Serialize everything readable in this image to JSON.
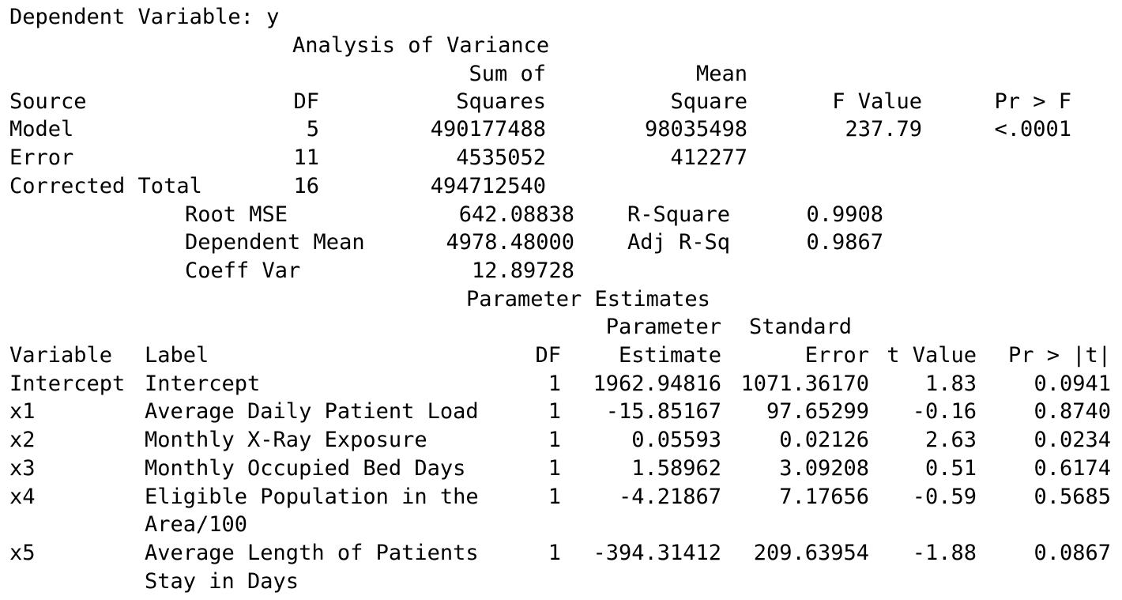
{
  "header": {
    "dependent_variable": "Dependent Variable: y"
  },
  "anova": {
    "title": "Analysis of Variance",
    "headers": {
      "source": "Source",
      "df": "DF",
      "sum_of": "Sum of",
      "squares": "Squares",
      "mean": "Mean",
      "square": "Square",
      "f_value": "F Value",
      "pr_f": "Pr > F"
    },
    "rows": [
      {
        "source": "Model",
        "df": "5",
        "ss": "490177488",
        "ms": "98035498",
        "f": "237.79",
        "p": "<.0001"
      },
      {
        "source": "Error",
        "df": "11",
        "ss": "4535052",
        "ms": "412277",
        "f": "",
        "p": ""
      },
      {
        "source": "Corrected Total",
        "df": "16",
        "ss": "494712540",
        "ms": "",
        "f": "",
        "p": ""
      }
    ]
  },
  "fit": {
    "root_mse_label": "Root MSE",
    "root_mse": "642.08838",
    "rsquare_label": "R-Square",
    "rsquare": "0.9908",
    "dep_mean_label": "Dependent Mean",
    "dep_mean": "4978.48000",
    "adj_rsq_label": "Adj R-Sq",
    "adj_rsq": "0.9867",
    "coeff_var_label": "Coeff Var",
    "coeff_var": "12.89728"
  },
  "params": {
    "title": "Parameter Estimates",
    "headers": {
      "variable": "Variable",
      "label": "Label",
      "df": "DF",
      "parameter": "Parameter",
      "estimate": "Estimate",
      "standard": "Standard",
      "error": "Error",
      "t_value": "t Value",
      "pr_t": "Pr > |t|"
    },
    "rows": [
      {
        "var": "Intercept",
        "label": [
          "Intercept"
        ],
        "df": "1",
        "est": "1962.94816",
        "se": "1071.36170",
        "t": "1.83",
        "p": "0.0941"
      },
      {
        "var": "x1",
        "label": [
          "Average Daily Patient Load"
        ],
        "df": "1",
        "est": "-15.85167",
        "se": "97.65299",
        "t": "-0.16",
        "p": "0.8740"
      },
      {
        "var": "x2",
        "label": [
          "Monthly X-Ray Exposure"
        ],
        "df": "1",
        "est": "0.05593",
        "se": "0.02126",
        "t": "2.63",
        "p": "0.0234"
      },
      {
        "var": "x3",
        "label": [
          "Monthly Occupied Bed Days"
        ],
        "df": "1",
        "est": "1.58962",
        "se": "3.09208",
        "t": "0.51",
        "p": "0.6174"
      },
      {
        "var": "x4",
        "label": [
          "Eligible Population in the",
          "Area/100"
        ],
        "df": "1",
        "est": "-4.21867",
        "se": "7.17656",
        "t": "-0.59",
        "p": "0.5685"
      },
      {
        "var": "x5",
        "label": [
          "Average Length of Patients",
          "Stay in Days"
        ],
        "df": "1",
        "est": "-394.31412",
        "se": "209.63954",
        "t": "-1.88",
        "p": "0.0867"
      }
    ]
  }
}
